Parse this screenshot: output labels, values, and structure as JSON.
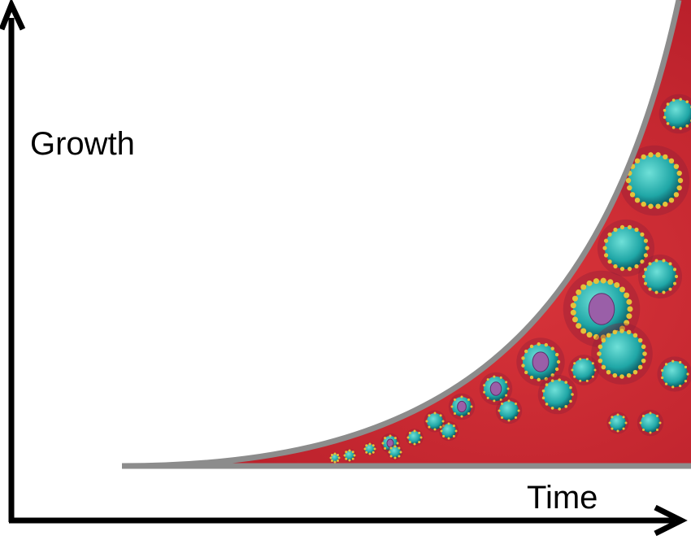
{
  "axes": {
    "y_label": "Growth",
    "x_label": "Time"
  }
}
